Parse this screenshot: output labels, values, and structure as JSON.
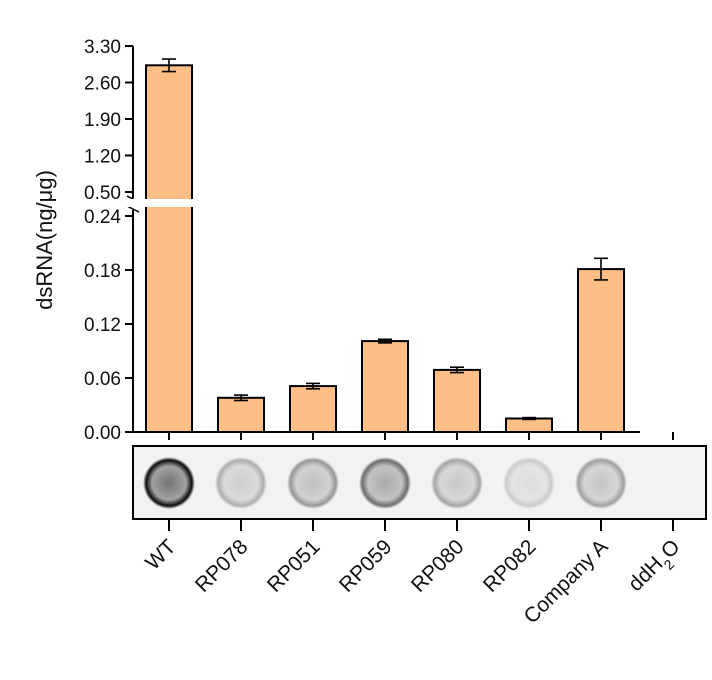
{
  "chart_data": {
    "type": "bar",
    "ylabel": "dsRNA(ng/μg)",
    "categories": [
      "WT",
      "RP078",
      "RP051",
      "RP059",
      "RP080",
      "RP082",
      "Company A",
      "ddH2O"
    ],
    "category_labels": [
      {
        "text": "WT"
      },
      {
        "text": "RP078"
      },
      {
        "text": "RP051"
      },
      {
        "text": "RP059"
      },
      {
        "text": "RP080"
      },
      {
        "text": "RP082"
      },
      {
        "text": "Company A"
      },
      {
        "text": "ddH",
        "sub": "2",
        "tail": "O"
      }
    ],
    "values": [
      2.93,
      0.038,
      0.051,
      0.101,
      0.069,
      0.015,
      0.181,
      null
    ],
    "errors": [
      0.12,
      0.003,
      0.003,
      0.002,
      0.003,
      0.001,
      0.012,
      null
    ],
    "y_axis_broken": true,
    "y_lower_range": [
      0,
      0.24
    ],
    "y_upper_range": [
      0.5,
      3.3
    ],
    "y_lower_ticks": [
      {
        "v": 0.0,
        "label": "0.00"
      },
      {
        "v": 0.06,
        "label": "0.06"
      },
      {
        "v": 0.12,
        "label": "0.12"
      },
      {
        "v": 0.18,
        "label": "0.18"
      },
      {
        "v": 0.24,
        "label": "0.24"
      }
    ],
    "y_upper_ticks": [
      {
        "v": 0.5,
        "label": "0.50"
      },
      {
        "v": 1.2,
        "label": "1.20"
      },
      {
        "v": 1.9,
        "label": "1.90"
      },
      {
        "v": 2.6,
        "label": "2.60"
      },
      {
        "v": 3.3,
        "label": "3.30"
      }
    ],
    "bar_color": "#FDBF85",
    "dot_blot_intensity": [
      0.95,
      0.28,
      0.38,
      0.55,
      0.32,
      0.16,
      0.34,
      0.0
    ]
  }
}
